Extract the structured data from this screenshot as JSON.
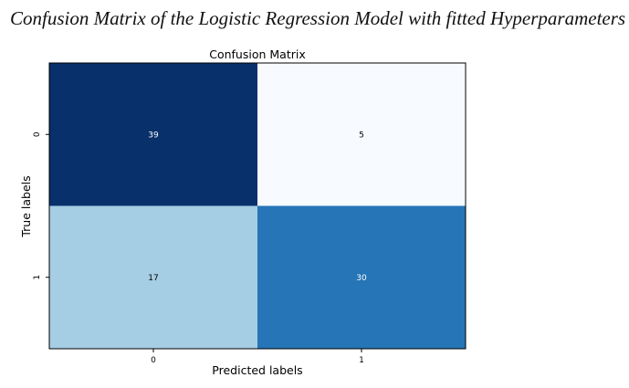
{
  "page": {
    "title": "Confusion Matrix of the Logistic Regression Model with fitted Hyperparameters"
  },
  "chart_data": {
    "type": "heatmap",
    "title": "Confusion Matrix",
    "xlabel": "Predicted labels",
    "ylabel": "True labels",
    "x_categories": [
      "0",
      "1"
    ],
    "y_categories": [
      "0",
      "1"
    ],
    "values": [
      [
        39,
        5
      ],
      [
        17,
        30
      ]
    ],
    "colormap": "Blues",
    "color_range": [
      5,
      39
    ],
    "colorbar": false,
    "grid": false
  }
}
